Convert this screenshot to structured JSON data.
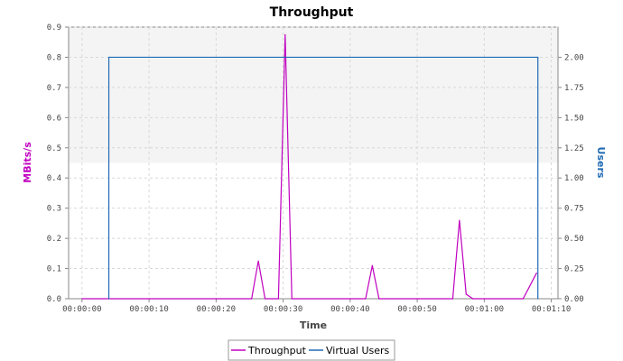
{
  "chart_data": {
    "type": "line",
    "title": "Throughput",
    "xlabel": "Time",
    "ylabel": "MBits/s",
    "y2label": "Users",
    "xlim": [
      -2,
      71
    ],
    "ylim": [
      0,
      0.9
    ],
    "y2lim": [
      0,
      2.25
    ],
    "x_ticks": [
      0,
      10,
      20,
      30,
      40,
      50,
      60,
      70
    ],
    "x_tick_labels": [
      "00:00:00",
      "00:00:10",
      "00:00:20",
      "00:00:30",
      "00:00:40",
      "00:00:50",
      "00:01:00",
      "00:01:10"
    ],
    "y_ticks": [
      0.0,
      0.1,
      0.2,
      0.3,
      0.4,
      0.5,
      0.6,
      0.7,
      0.8,
      0.9
    ],
    "y_tick_labels": [
      "0.0",
      "0.1",
      "0.2",
      "0.3",
      "0.4",
      "0.5",
      "0.6",
      "0.7",
      "0.8",
      "0.9"
    ],
    "y2_ticks": [
      0,
      0.25,
      0.5,
      0.75,
      1.0,
      1.25,
      1.5,
      1.75,
      2.0
    ],
    "y2_tick_labels": [
      "0.00",
      "0.25",
      "0.50",
      "0.75",
      "1.00",
      "1.25",
      "1.50",
      "1.75",
      "2.00"
    ],
    "grid": true,
    "legend": "bottom-center",
    "series": [
      {
        "name": "Throughput",
        "axis": "left",
        "color": "#c000c0",
        "x": [
          0,
          25.3,
          26.3,
          27.3,
          29.3,
          30.3,
          31.3,
          42.3,
          43.3,
          44.3,
          55.3,
          56.3,
          57.3,
          58.3,
          65.8,
          67.8
        ],
        "y": [
          0,
          0,
          0.125,
          0,
          0,
          0.875,
          0,
          0,
          0.11,
          0,
          0,
          0.26,
          0.015,
          0,
          0,
          0.085
        ]
      },
      {
        "name": "Virtual Users",
        "axis": "right",
        "color": "#1f6ab4",
        "x": [
          4,
          4,
          68,
          68
        ],
        "y": [
          0,
          2,
          2,
          0
        ]
      }
    ]
  }
}
